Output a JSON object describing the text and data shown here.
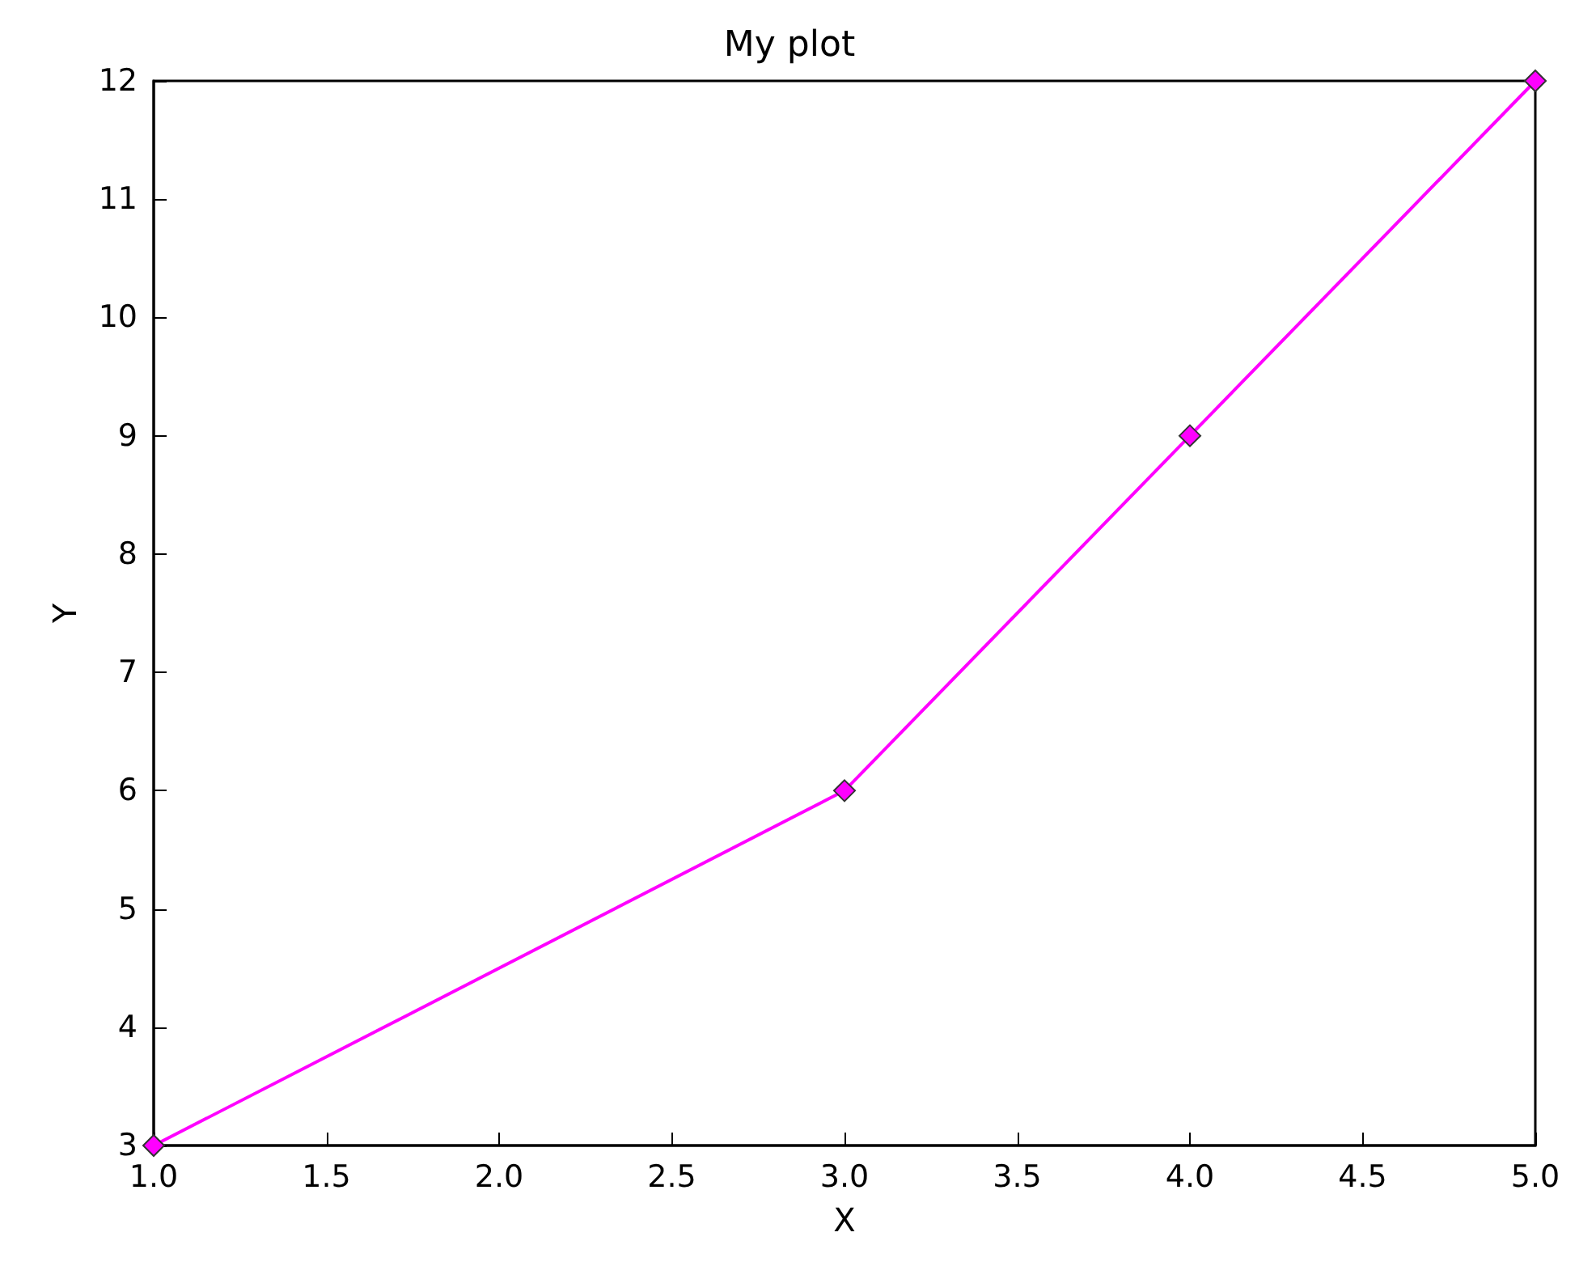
{
  "chart_data": {
    "type": "line",
    "title": "My plot",
    "xlabel": "X",
    "ylabel": "Y",
    "x": [
      1,
      3,
      4,
      5
    ],
    "series": [
      {
        "color": "#ff00ff",
        "values": [
          3,
          6,
          9,
          12
        ]
      }
    ],
    "marker": "diamond",
    "line_style": "solid",
    "grid": false,
    "xlim": [
      1,
      5
    ],
    "ylim": [
      3,
      12
    ],
    "xticks": [
      {
        "value": 1,
        "label": "1.0"
      },
      {
        "value": 1.5,
        "label": "1.5"
      },
      {
        "value": 2,
        "label": "2.0"
      },
      {
        "value": 2.5,
        "label": "2.5"
      },
      {
        "value": 3,
        "label": "3.0"
      },
      {
        "value": 3.5,
        "label": "3.5"
      },
      {
        "value": 4,
        "label": "4.0"
      },
      {
        "value": 4.5,
        "label": "4.5"
      },
      {
        "value": 5,
        "label": "5.0"
      }
    ],
    "yticks": [
      3,
      4,
      5,
      6,
      7,
      8,
      9,
      10,
      11,
      12
    ]
  }
}
